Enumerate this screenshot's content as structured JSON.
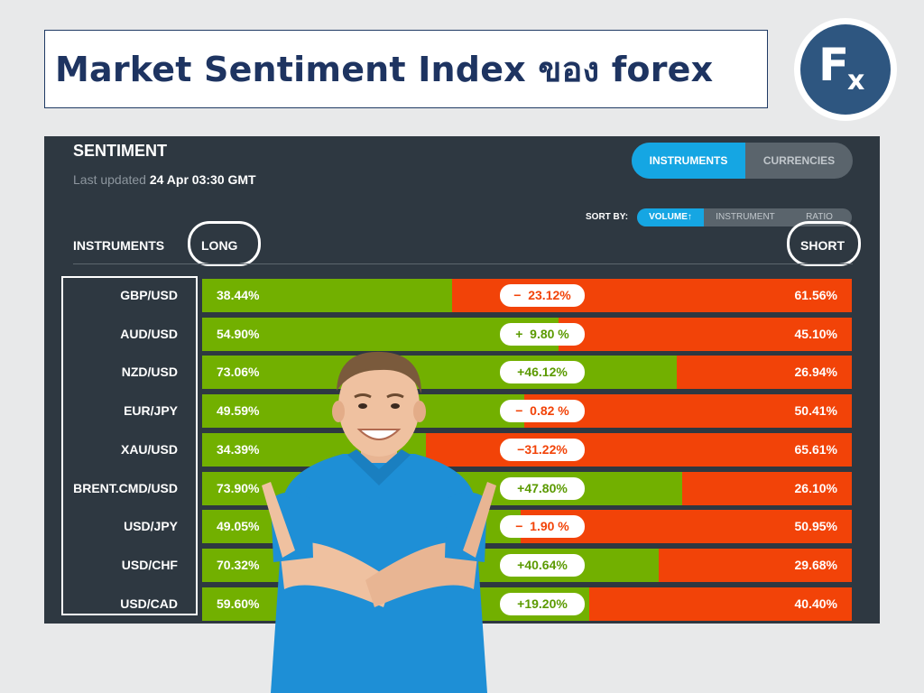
{
  "header": {
    "title": "Market Sentiment Index ของ forex",
    "logo_f": "F",
    "logo_x": "x"
  },
  "panel": {
    "title": "SENTIMENT",
    "last_updated_label": "Last updated",
    "last_updated_value": "24 Apr 03:30 GMT",
    "tabs": [
      "INSTRUMENTS",
      "CURRENCIES"
    ],
    "sort_by_label": "SORT BY:",
    "sort_options": [
      "VOLUME↑",
      "INSTRUMENT",
      "RATIO"
    ],
    "col_instruments": "INSTRUMENTS",
    "col_long": "LONG",
    "col_short": "SHORT"
  },
  "colors": {
    "long": "#72b000",
    "short": "#f24308",
    "accent": "#15a6e3",
    "panel_bg": "#2e3841"
  },
  "rows": [
    {
      "instrument": "GBP/USD",
      "long": "38.44%",
      "short": "61.56%",
      "diff": "−  23.12%",
      "sign": "neg",
      "long_pct": 38.44
    },
    {
      "instrument": "AUD/USD",
      "long": "54.90%",
      "short": "45.10%",
      "diff": "+  9.80 %",
      "sign": "pos",
      "long_pct": 54.9
    },
    {
      "instrument": "NZD/USD",
      "long": "73.06%",
      "short": "26.94%",
      "diff": "+46.12%",
      "sign": "pos",
      "long_pct": 73.06
    },
    {
      "instrument": "EUR/JPY",
      "long": "49.59%",
      "short": "50.41%",
      "diff": "−  0.82 %",
      "sign": "neg",
      "long_pct": 49.59
    },
    {
      "instrument": "XAU/USD",
      "long": "34.39%",
      "short": "65.61%",
      "diff": "−31.22%",
      "sign": "neg",
      "long_pct": 34.39
    },
    {
      "instrument": "BRENT.CMD/USD",
      "long": "73.90%",
      "short": "26.10%",
      "diff": "+47.80%",
      "sign": "pos",
      "long_pct": 73.9
    },
    {
      "instrument": "USD/JPY",
      "long": "49.05%",
      "short": "50.95%",
      "diff": "−  1.90 %",
      "sign": "neg",
      "long_pct": 49.05
    },
    {
      "instrument": "USD/CHF",
      "long": "70.32%",
      "short": "29.68%",
      "diff": "+40.64%",
      "sign": "pos",
      "long_pct": 70.32
    },
    {
      "instrument": "USD/CAD",
      "long": "59.60%",
      "short": "40.40%",
      "diff": "+19.20%",
      "sign": "pos",
      "long_pct": 59.6
    }
  ]
}
